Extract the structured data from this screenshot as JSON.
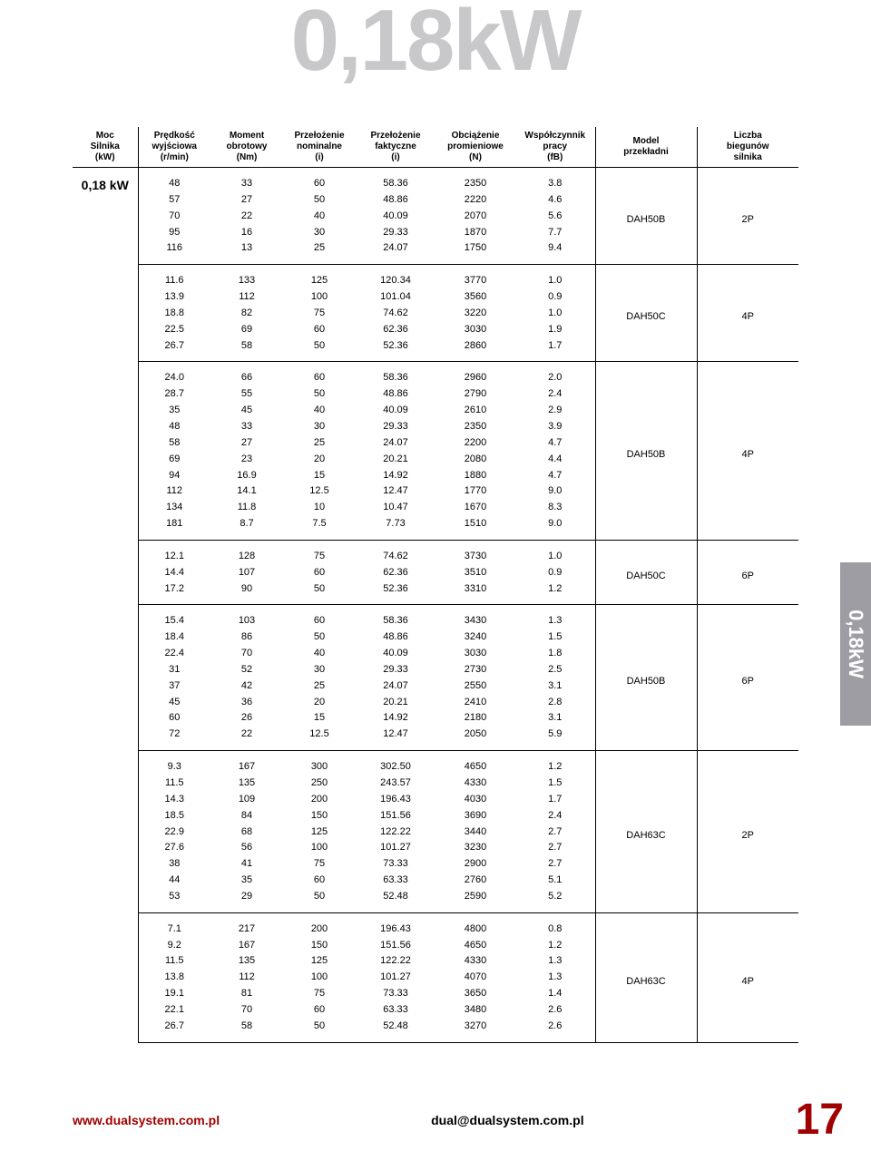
{
  "title": "0,18kW",
  "side_label": "0,18kW",
  "power_label": "0,18 kW",
  "footer": {
    "url": "www.dualsystem.com.pl",
    "mail": "dual@dualsystem.com.pl",
    "page": "17"
  },
  "headers": {
    "moc": "Moc\nSilnika\n(kW)",
    "pred": "Prędkość\nwyjściowa\n(r/min)",
    "mom": "Moment\nobrotowy\n(Nm)",
    "pnom": "Przełożenie\nnominalne\n(i)",
    "pfak": "Przełożenie\nfaktyczne\n(i)",
    "obc": "Obciążenie\npromieniowe\n(N)",
    "wsp": "Współczynnik\npracy\n(fB)",
    "mod": "Model\nprzekładni",
    "licz": "Liczba\nbiegunów\nsilnika"
  },
  "groups": [
    {
      "model": "DAH50B",
      "poles": "2P",
      "rows": [
        [
          "48",
          "33",
          "60",
          "58.36",
          "2350",
          "3.8"
        ],
        [
          "57",
          "27",
          "50",
          "48.86",
          "2220",
          "4.6"
        ],
        [
          "70",
          "22",
          "40",
          "40.09",
          "2070",
          "5.6"
        ],
        [
          "95",
          "16",
          "30",
          "29.33",
          "1870",
          "7.7"
        ],
        [
          "116",
          "13",
          "25",
          "24.07",
          "1750",
          "9.4"
        ]
      ]
    },
    {
      "model": "DAH50C",
      "poles": "4P",
      "rows": [
        [
          "11.6",
          "133",
          "125",
          "120.34",
          "3770",
          "1.0"
        ],
        [
          "13.9",
          "112",
          "100",
          "101.04",
          "3560",
          "0.9"
        ],
        [
          "18.8",
          "82",
          "75",
          "74.62",
          "3220",
          "1.0"
        ],
        [
          "22.5",
          "69",
          "60",
          "62.36",
          "3030",
          "1.9"
        ],
        [
          "26.7",
          "58",
          "50",
          "52.36",
          "2860",
          "1.7"
        ]
      ]
    },
    {
      "model": "DAH50B",
      "poles": "4P",
      "rows": [
        [
          "24.0",
          "66",
          "60",
          "58.36",
          "2960",
          "2.0"
        ],
        [
          "28.7",
          "55",
          "50",
          "48.86",
          "2790",
          "2.4"
        ],
        [
          "35",
          "45",
          "40",
          "40.09",
          "2610",
          "2.9"
        ],
        [
          "48",
          "33",
          "30",
          "29.33",
          "2350",
          "3.9"
        ],
        [
          "58",
          "27",
          "25",
          "24.07",
          "2200",
          "4.7"
        ],
        [
          "69",
          "23",
          "20",
          "20.21",
          "2080",
          "4.4"
        ],
        [
          "94",
          "16.9",
          "15",
          "14.92",
          "1880",
          "4.7"
        ],
        [
          "112",
          "14.1",
          "12.5",
          "12.47",
          "1770",
          "9.0"
        ],
        [
          "134",
          "11.8",
          "10",
          "10.47",
          "1670",
          "8.3"
        ],
        [
          "181",
          "8.7",
          "7.5",
          "7.73",
          "1510",
          "9.0"
        ]
      ]
    },
    {
      "model": "DAH50C",
      "poles": "6P",
      "rows": [
        [
          "12.1",
          "128",
          "75",
          "74.62",
          "3730",
          "1.0"
        ],
        [
          "14.4",
          "107",
          "60",
          "62.36",
          "3510",
          "0.9"
        ],
        [
          "17.2",
          "90",
          "50",
          "52.36",
          "3310",
          "1.2"
        ]
      ]
    },
    {
      "model": "DAH50B",
      "poles": "6P",
      "rows": [
        [
          "15.4",
          "103",
          "60",
          "58.36",
          "3430",
          "1.3"
        ],
        [
          "18.4",
          "86",
          "50",
          "48.86",
          "3240",
          "1.5"
        ],
        [
          "22.4",
          "70",
          "40",
          "40.09",
          "3030",
          "1.8"
        ],
        [
          "31",
          "52",
          "30",
          "29.33",
          "2730",
          "2.5"
        ],
        [
          "37",
          "42",
          "25",
          "24.07",
          "2550",
          "3.1"
        ],
        [
          "45",
          "36",
          "20",
          "20.21",
          "2410",
          "2.8"
        ],
        [
          "60",
          "26",
          "15",
          "14.92",
          "2180",
          "3.1"
        ],
        [
          "72",
          "22",
          "12.5",
          "12.47",
          "2050",
          "5.9"
        ]
      ]
    },
    {
      "model": "DAH63C",
      "poles": "2P",
      "rows": [
        [
          "9.3",
          "167",
          "300",
          "302.50",
          "4650",
          "1.2"
        ],
        [
          "11.5",
          "135",
          "250",
          "243.57",
          "4330",
          "1.5"
        ],
        [
          "14.3",
          "109",
          "200",
          "196.43",
          "4030",
          "1.7"
        ],
        [
          "18.5",
          "84",
          "150",
          "151.56",
          "3690",
          "2.4"
        ],
        [
          "22.9",
          "68",
          "125",
          "122.22",
          "3440",
          "2.7"
        ],
        [
          "27.6",
          "56",
          "100",
          "101.27",
          "3230",
          "2.7"
        ],
        [
          "38",
          "41",
          "75",
          "73.33",
          "2900",
          "2.7"
        ],
        [
          "44",
          "35",
          "60",
          "63.33",
          "2760",
          "5.1"
        ],
        [
          "53",
          "29",
          "50",
          "52.48",
          "2590",
          "5.2"
        ]
      ]
    },
    {
      "model": "DAH63C",
      "poles": "4P",
      "rows": [
        [
          "7.1",
          "217",
          "200",
          "196.43",
          "4800",
          "0.8"
        ],
        [
          "9.2",
          "167",
          "150",
          "151.56",
          "4650",
          "1.2"
        ],
        [
          "11.5",
          "135",
          "125",
          "122.22",
          "4330",
          "1.3"
        ],
        [
          "13.8",
          "112",
          "100",
          "101.27",
          "4070",
          "1.3"
        ],
        [
          "19.1",
          "81",
          "75",
          "73.33",
          "3650",
          "1.4"
        ],
        [
          "22.1",
          "70",
          "60",
          "63.33",
          "3480",
          "2.6"
        ],
        [
          "26.7",
          "58",
          "50",
          "52.48",
          "3270",
          "2.6"
        ]
      ]
    }
  ]
}
